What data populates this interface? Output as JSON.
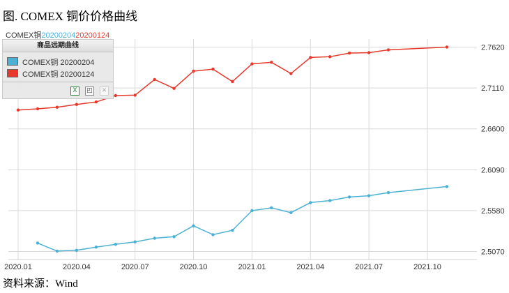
{
  "figure_title": "图. COMEX 铜价价格曲线",
  "header": {
    "prefix": "COMEX铜",
    "date_a": "20200204",
    "date_b": "20200124"
  },
  "legend": {
    "title": "商品远期曲线",
    "tools": [
      "excel-export-icon",
      "image-export-icon",
      "disabled-tool-icon"
    ]
  },
  "source": "资料来源：Wind",
  "colors": {
    "series_blue": "#4ab1d4",
    "series_red": "#e8382b",
    "grid": "#d9d9d9"
  },
  "chart_data": {
    "type": "line",
    "x_tick_labels": [
      "2020.01",
      "2020.04",
      "2020.07",
      "2020.10",
      "2021.01",
      "2021.04",
      "2021.07",
      "2021.10"
    ],
    "y_ticks": [
      2.507,
      2.558,
      2.609,
      2.66,
      2.711,
      2.762
    ],
    "y_tick_labels": [
      "2.5070",
      "2.5580",
      "2.6090",
      "2.6600",
      "2.7110",
      "2.7620"
    ],
    "ylim": [
      2.497,
      2.772
    ],
    "grid": true,
    "legend_position": "top-left",
    "series": [
      {
        "name": "COMEX铜 20200204",
        "color": "#4ab1d4",
        "x": [
          "2020.02",
          "2020.03",
          "2020.04",
          "2020.05",
          "2020.06",
          "2020.07",
          "2020.08",
          "2020.09",
          "2020.10",
          "2020.11",
          "2020.12",
          "2021.01",
          "2021.02",
          "2021.03",
          "2021.04",
          "2021.05",
          "2021.06",
          "2021.07",
          "2021.08",
          "2021.11"
        ],
        "values": [
          2.5175,
          2.5075,
          2.5085,
          2.5125,
          2.516,
          2.519,
          2.5235,
          2.5255,
          2.539,
          2.528,
          2.5335,
          2.558,
          2.5615,
          2.5555,
          2.568,
          2.5705,
          2.575,
          2.5765,
          2.5805,
          2.588
        ]
      },
      {
        "name": "COMEX铜 20200124",
        "color": "#e8382b",
        "x": [
          "2020.01",
          "2020.02",
          "2020.03",
          "2020.04",
          "2020.05",
          "2020.06",
          "2020.07",
          "2020.08",
          "2020.09",
          "2020.10",
          "2020.11",
          "2020.12",
          "2021.01",
          "2021.02",
          "2021.03",
          "2021.04",
          "2021.05",
          "2021.06",
          "2021.07",
          "2021.08",
          "2021.11"
        ],
        "values": [
          2.6835,
          2.685,
          2.687,
          2.6905,
          2.6935,
          2.7015,
          2.702,
          2.7215,
          2.7105,
          2.732,
          2.7345,
          2.719,
          2.741,
          2.743,
          2.729,
          2.749,
          2.75,
          2.7545,
          2.755,
          2.7585,
          2.762
        ]
      }
    ]
  }
}
